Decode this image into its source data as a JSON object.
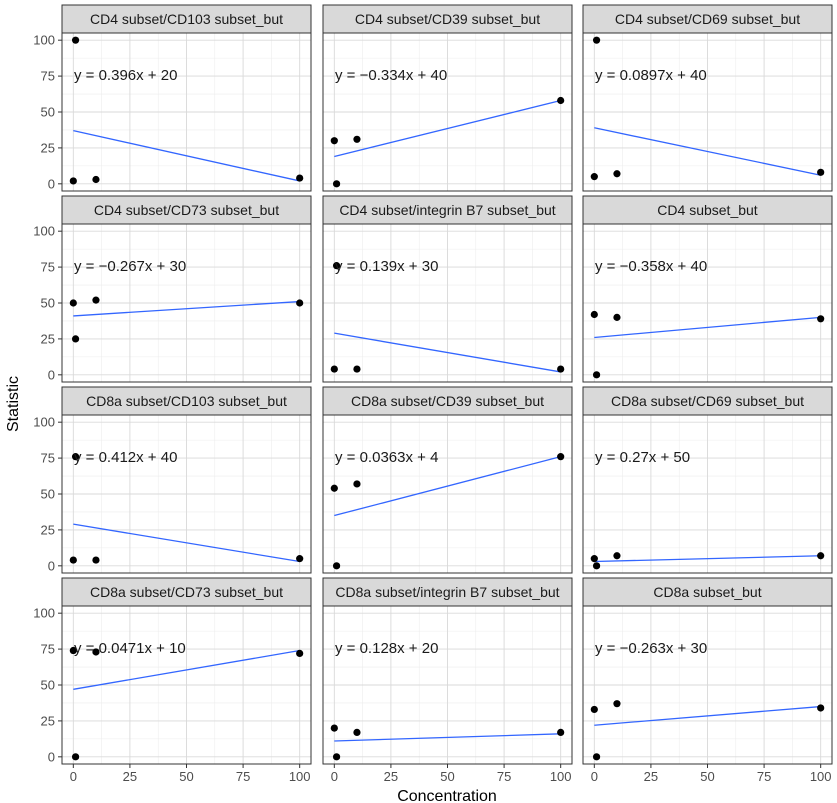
{
  "chart_data": {
    "type": "scatter",
    "layout": "facet-grid 4 rows x 3 columns",
    "xlabel": "Concentration",
    "ylabel": "Statistic",
    "xlim": [
      0,
      100
    ],
    "ylim": [
      0,
      100
    ],
    "x_ticks": [
      0,
      25,
      50,
      75,
      100
    ],
    "y_ticks": [
      0,
      25,
      50,
      75,
      100
    ],
    "point_color": "#000000",
    "line_color": "#3366ff",
    "strip_color": "#d9d9d9",
    "panels": [
      {
        "title": "CD4 subset/CD103 subset_but",
        "equation": "y = 0.396x + 20",
        "points": [
          {
            "x": 0,
            "y": 2
          },
          {
            "x": 1,
            "y": 100
          },
          {
            "x": 10,
            "y": 3
          },
          {
            "x": 100,
            "y": 4
          }
        ],
        "fit": [
          {
            "x": 0,
            "y": 37
          },
          {
            "x": 100,
            "y": 2
          }
        ]
      },
      {
        "title": "CD4 subset/CD39 subset_but",
        "equation": "y = −0.334x + 40",
        "points": [
          {
            "x": 0,
            "y": 30
          },
          {
            "x": 1,
            "y": 0
          },
          {
            "x": 10,
            "y": 31
          },
          {
            "x": 100,
            "y": 58
          }
        ],
        "fit": [
          {
            "x": 0,
            "y": 19
          },
          {
            "x": 100,
            "y": 58
          }
        ]
      },
      {
        "title": "CD4 subset/CD69 subset_but",
        "equation": "y = 0.0897x + 40",
        "points": [
          {
            "x": 0,
            "y": 5
          },
          {
            "x": 1,
            "y": 100
          },
          {
            "x": 10,
            "y": 7
          },
          {
            "x": 100,
            "y": 8
          }
        ],
        "fit": [
          {
            "x": 0,
            "y": 39
          },
          {
            "x": 100,
            "y": 6
          }
        ]
      },
      {
        "title": "CD4 subset/CD73 subset_but",
        "equation": "y = −0.267x + 30",
        "points": [
          {
            "x": 0,
            "y": 50
          },
          {
            "x": 1,
            "y": 25
          },
          {
            "x": 10,
            "y": 52
          },
          {
            "x": 100,
            "y": 50
          }
        ],
        "fit": [
          {
            "x": 0,
            "y": 41
          },
          {
            "x": 100,
            "y": 51
          }
        ]
      },
      {
        "title": "CD4 subset/integrin B7 subset_but",
        "equation": "y = 0.139x + 30",
        "points": [
          {
            "x": 0,
            "y": 4
          },
          {
            "x": 1,
            "y": 76
          },
          {
            "x": 10,
            "y": 4
          },
          {
            "x": 100,
            "y": 4
          }
        ],
        "fit": [
          {
            "x": 0,
            "y": 29
          },
          {
            "x": 100,
            "y": 2
          }
        ]
      },
      {
        "title": "CD4 subset_but",
        "equation": "y = −0.358x + 40",
        "points": [
          {
            "x": 0,
            "y": 42
          },
          {
            "x": 1,
            "y": 0
          },
          {
            "x": 10,
            "y": 40
          },
          {
            "x": 100,
            "y": 39
          }
        ],
        "fit": [
          {
            "x": 0,
            "y": 26
          },
          {
            "x": 100,
            "y": 40
          }
        ]
      },
      {
        "title": "CD8a subset/CD103 subset_but",
        "equation": "y = 0.412x + 40",
        "points": [
          {
            "x": 0,
            "y": 4
          },
          {
            "x": 1,
            "y": 76
          },
          {
            "x": 10,
            "y": 4
          },
          {
            "x": 100,
            "y": 5
          }
        ],
        "fit": [
          {
            "x": 0,
            "y": 29
          },
          {
            "x": 100,
            "y": 3
          }
        ]
      },
      {
        "title": "CD8a subset/CD39 subset_but",
        "equation": "y = 0.0363x + 4",
        "points": [
          {
            "x": 0,
            "y": 54
          },
          {
            "x": 1,
            "y": 0
          },
          {
            "x": 10,
            "y": 57
          },
          {
            "x": 100,
            "y": 76
          }
        ],
        "fit": [
          {
            "x": 0,
            "y": 35
          },
          {
            "x": 100,
            "y": 76
          }
        ]
      },
      {
        "title": "CD8a subset/CD69 subset_but",
        "equation": "y = 0.27x + 50",
        "points": [
          {
            "x": 0,
            "y": 5
          },
          {
            "x": 1,
            "y": 0
          },
          {
            "x": 10,
            "y": 7
          },
          {
            "x": 100,
            "y": 7
          }
        ],
        "fit": [
          {
            "x": 0,
            "y": 3
          },
          {
            "x": 100,
            "y": 7
          }
        ]
      },
      {
        "title": "CD8a subset/CD73 subset_but",
        "equation": "y = 0.0471x + 10",
        "points": [
          {
            "x": 0,
            "y": 74
          },
          {
            "x": 1,
            "y": 0
          },
          {
            "x": 10,
            "y": 73
          },
          {
            "x": 100,
            "y": 72
          }
        ],
        "fit": [
          {
            "x": 0,
            "y": 47
          },
          {
            "x": 100,
            "y": 74
          }
        ]
      },
      {
        "title": "CD8a subset/integrin B7 subset_but",
        "equation": "y = 0.128x + 20",
        "points": [
          {
            "x": 0,
            "y": 20
          },
          {
            "x": 1,
            "y": 0
          },
          {
            "x": 10,
            "y": 17
          },
          {
            "x": 100,
            "y": 17
          }
        ],
        "fit": [
          {
            "x": 0,
            "y": 11
          },
          {
            "x": 100,
            "y": 16
          }
        ]
      },
      {
        "title": "CD8a subset_but",
        "equation": "y = −0.263x + 30",
        "points": [
          {
            "x": 0,
            "y": 33
          },
          {
            "x": 1,
            "y": 0
          },
          {
            "x": 10,
            "y": 37
          },
          {
            "x": 100,
            "y": 34
          }
        ],
        "fit": [
          {
            "x": 0,
            "y": 22
          },
          {
            "x": 100,
            "y": 35
          }
        ]
      }
    ]
  }
}
